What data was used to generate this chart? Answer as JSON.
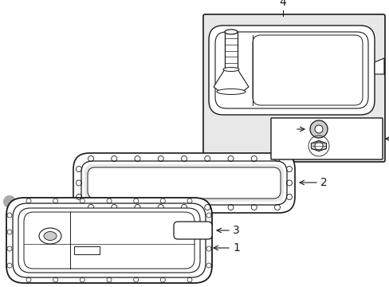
{
  "bg_color": "#ffffff",
  "line_color": "#1a1a1a",
  "gray_fill": "#e8e8e8",
  "light_gray": "#cccccc",
  "mid_gray": "#aaaaaa",
  "box_fill": "#eeeeee",
  "white": "#ffffff"
}
